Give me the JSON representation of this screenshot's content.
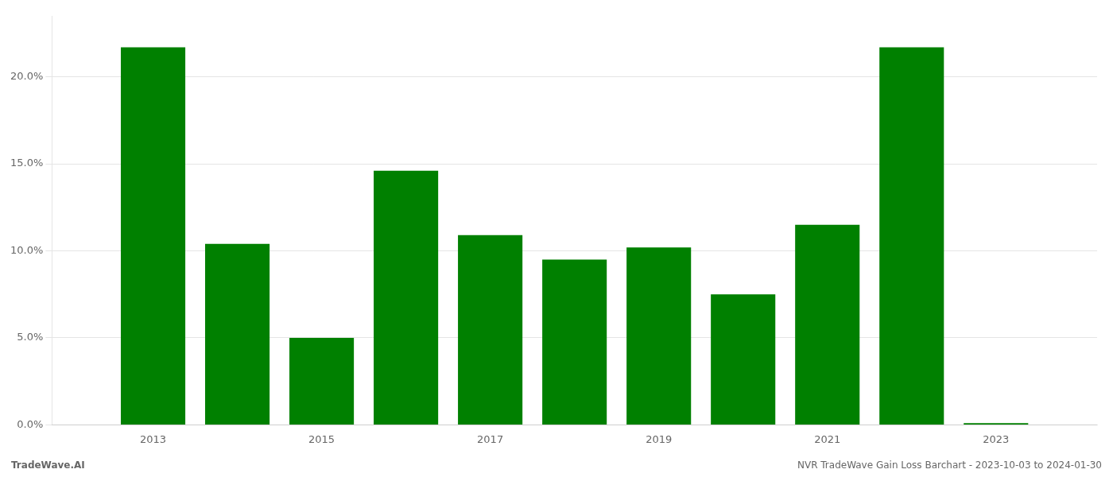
{
  "chart_data": {
    "type": "bar",
    "x": [
      2013,
      2014,
      2015,
      2016,
      2017,
      2018,
      2019,
      2020,
      2021,
      2022,
      2023
    ],
    "values": [
      0.217,
      0.104,
      0.05,
      0.146,
      0.109,
      0.095,
      0.102,
      0.075,
      0.115,
      0.217,
      0.001
    ],
    "color": "#008000",
    "xlim": [
      2011.8,
      2024.2
    ],
    "xticks": [
      2013,
      2015,
      2017,
      2019,
      2021,
      2023
    ],
    "ylim": [
      0,
      0.235
    ],
    "yticks": [
      {
        "value": 0.0,
        "label": "0.0%"
      },
      {
        "value": 0.05,
        "label": "5.0%"
      },
      {
        "value": 0.1,
        "label": "10.0%"
      },
      {
        "value": 0.15,
        "label": "15.0%"
      },
      {
        "value": 0.2,
        "label": "20.0%"
      }
    ],
    "grid": true,
    "annotations": [
      "TradeWave.AI",
      "NVR TradeWave Gain Loss Barchart - 2023-10-03 to 2024-01-30"
    ]
  }
}
